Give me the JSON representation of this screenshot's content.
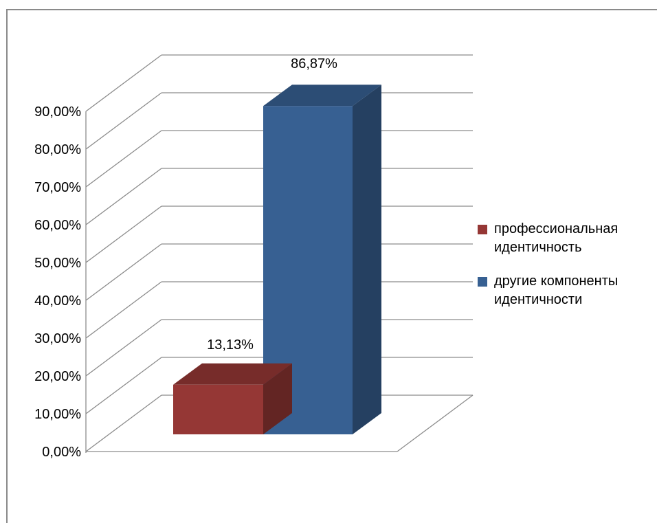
{
  "chart_data": {
    "type": "bar",
    "title": "",
    "xlabel": "",
    "ylabel": "",
    "ylim": [
      0,
      0.9
    ],
    "y_ticks": [
      "0,00%",
      "10,00%",
      "20,00%",
      "30,00%",
      "40,00%",
      "50,00%",
      "60,00%",
      "70,00%",
      "80,00%",
      "90,00%"
    ],
    "grid": true,
    "projection": "3d",
    "legend_position": "right",
    "series": [
      {
        "name": "профессиональная идентичность",
        "value": 0.1313,
        "label": "13,13%",
        "color": "#953735",
        "top_color": "#772C2A",
        "side_color": "#632523"
      },
      {
        "name": "другие компоненты идентичности",
        "value": 0.8687,
        "label": "86,87%",
        "color": "#376092",
        "top_color": "#2C4D75",
        "side_color": "#254061"
      }
    ]
  }
}
